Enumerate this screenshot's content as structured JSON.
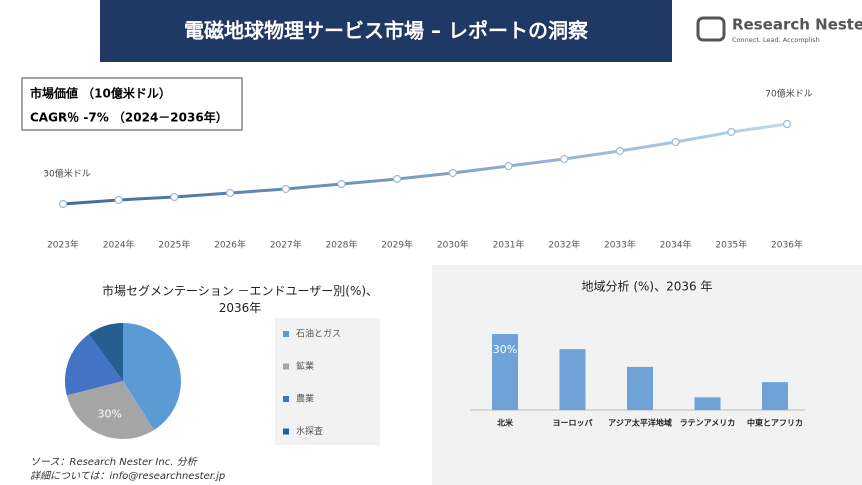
{
  "header": {
    "title": "電磁地球物理サービス市場 – レポートの洞察"
  },
  "logo": {
    "name": "Research Nester",
    "tagline": "Connect. Lead. Accomplish"
  },
  "info": {
    "market_value": "市場価値 （10億米ドル）",
    "cagr": "CAGR％ -7% （2024－2036年）"
  },
  "chart_data": [
    {
      "type": "line",
      "categories": [
        "2023年",
        "2024年",
        "2025年",
        "2026年",
        "2027年",
        "2028年",
        "2029年",
        "2030年",
        "2031年",
        "2032年",
        "2033年",
        "2034年",
        "2035年",
        "2036年"
      ],
      "values": [
        30,
        32,
        33.5,
        35.5,
        37.5,
        40,
        42.5,
        45.5,
        49,
        52.5,
        56.5,
        61,
        66,
        70
      ],
      "value_labels": [
        "30億米ドル",
        null,
        null,
        null,
        null,
        null,
        null,
        null,
        null,
        null,
        null,
        null,
        null,
        "70億米ドル"
      ]
    },
    {
      "type": "pie",
      "title": "市場セグメンテーション －エンドユーザー別(%)、2036年",
      "categories": [
        "石油とガス",
        "鉱業",
        "農業",
        "水探査"
      ],
      "values": [
        41,
        30,
        19,
        10
      ],
      "value_labels": [
        null,
        "30%",
        null,
        null
      ],
      "colors": [
        "#5b9bd5",
        "#a5a5a5",
        "#4472c4",
        "#255e91"
      ]
    },
    {
      "type": "bar",
      "title": "地域分析 (%)、2036 年",
      "categories": [
        "北米",
        "ヨーロッパ",
        "アジア太平洋地域",
        "ラテンアメリカ",
        "中東とアフリカ"
      ],
      "values": [
        30,
        24,
        17,
        5,
        11
      ],
      "value_labels": [
        "30%",
        null,
        null,
        null,
        null
      ],
      "color": "#6fa3d8"
    }
  ],
  "footer": {
    "source": "ソース：Research Nester Inc. 分析",
    "contact": "詳細については：info@researchnester.jp"
  }
}
